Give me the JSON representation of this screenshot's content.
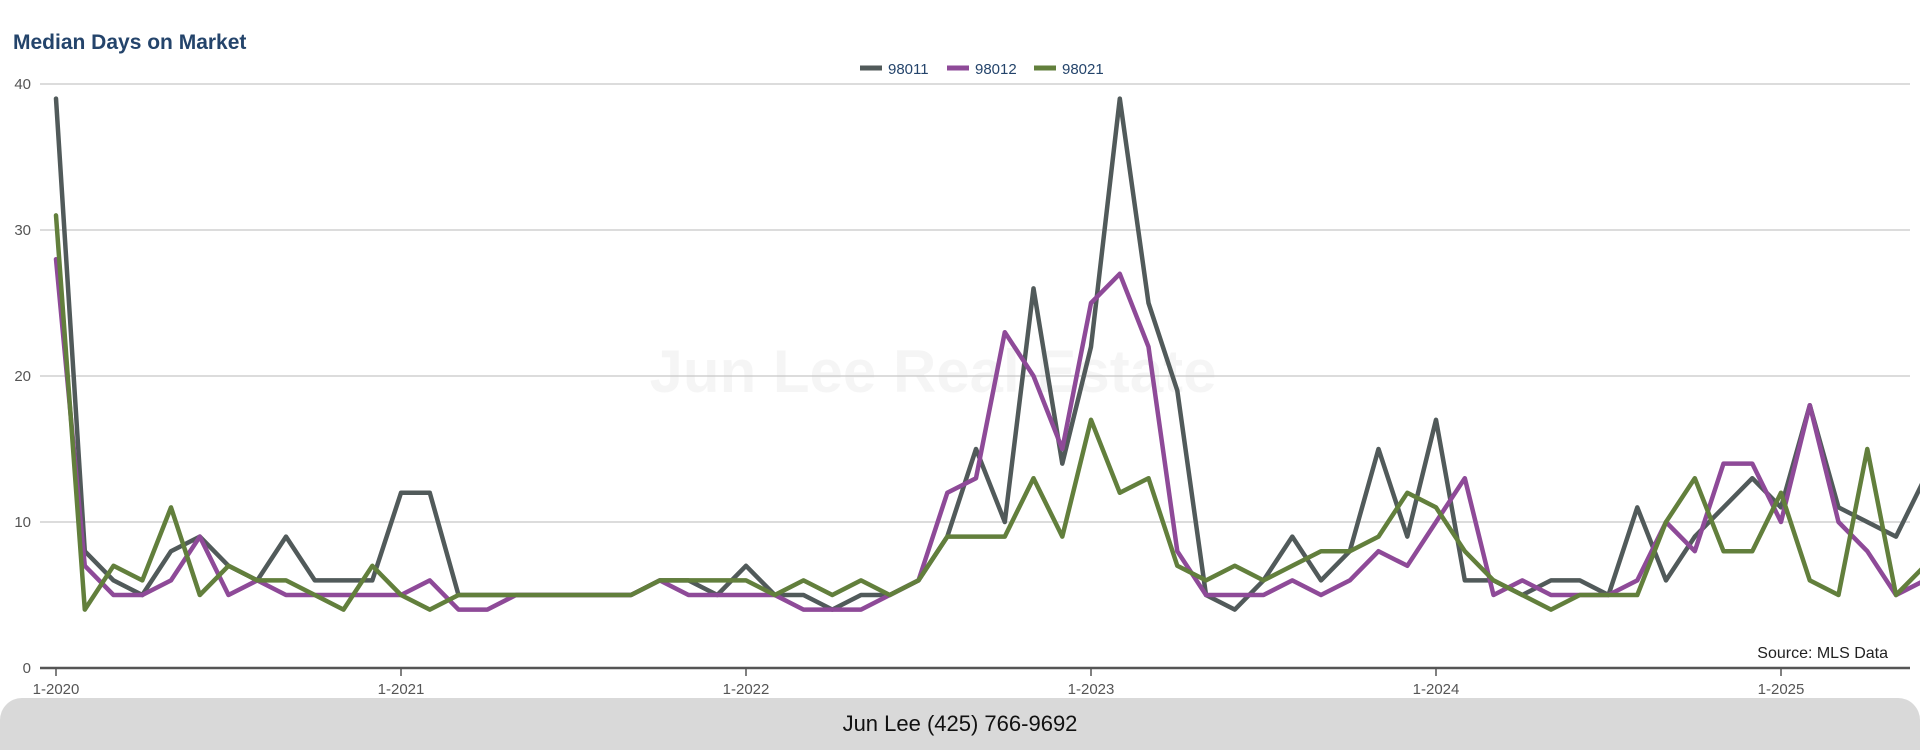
{
  "chart_data": {
    "type": "line",
    "title": "Median Days on Market",
    "xlabel": "",
    "ylabel": "",
    "ylim": [
      0,
      40
    ],
    "y_ticks": [
      0,
      10,
      20,
      30,
      40
    ],
    "x_ticks": [
      "1-2020",
      "1-2021",
      "1-2022",
      "1-2023",
      "1-2024",
      "1-2025"
    ],
    "x_start": "1-2020",
    "x_end": "5-2025",
    "legend_position": "top-center",
    "grid": true,
    "series": [
      {
        "name": "98011",
        "color": "#515a5a",
        "values": [
          39,
          8,
          6,
          5,
          8,
          9,
          7,
          6,
          9,
          6,
          6,
          6,
          12,
          12,
          5,
          5,
          5,
          5,
          5,
          5,
          5,
          6,
          6,
          5,
          7,
          5,
          5,
          4,
          5,
          5,
          6,
          9,
          15,
          10,
          26,
          14,
          22,
          39,
          25,
          19,
          5,
          4,
          6,
          9,
          6,
          8,
          15,
          9,
          17,
          6,
          6,
          5,
          6,
          6,
          5,
          11,
          6,
          9,
          11,
          13,
          11,
          18,
          11,
          10,
          9,
          13
        ]
      },
      {
        "name": "98012",
        "color": "#8e4a98",
        "values": [
          28,
          7,
          5,
          5,
          6,
          9,
          5,
          6,
          5,
          5,
          5,
          5,
          5,
          6,
          4,
          4,
          5,
          5,
          5,
          5,
          5,
          6,
          5,
          5,
          5,
          5,
          4,
          4,
          4,
          5,
          6,
          12,
          13,
          23,
          20,
          15,
          25,
          27,
          22,
          8,
          5,
          5,
          5,
          6,
          5,
          6,
          8,
          7,
          10,
          13,
          5,
          6,
          5,
          5,
          5,
          6,
          10,
          8,
          14,
          14,
          10,
          18,
          10,
          8,
          5,
          6
        ]
      },
      {
        "name": "98021",
        "color": "#627f3c",
        "values": [
          31,
          4,
          7,
          6,
          11,
          5,
          7,
          6,
          6,
          5,
          4,
          7,
          5,
          4,
          5,
          5,
          5,
          5,
          5,
          5,
          5,
          6,
          6,
          6,
          6,
          5,
          6,
          5,
          6,
          5,
          6,
          9,
          9,
          9,
          13,
          9,
          17,
          12,
          13,
          7,
          6,
          7,
          6,
          7,
          8,
          8,
          9,
          12,
          11,
          8,
          6,
          5,
          4,
          5,
          5,
          5,
          10,
          13,
          8,
          8,
          12,
          6,
          5,
          15,
          5,
          7
        ]
      }
    ],
    "watermark": "Jun Lee Real Estate",
    "source": "Source: MLS Data"
  },
  "footer": {
    "text": "Jun Lee (425) 766-9692"
  },
  "colors": {
    "title": "#24446b",
    "grid": "#c8c8c8",
    "axis": "#555555"
  }
}
